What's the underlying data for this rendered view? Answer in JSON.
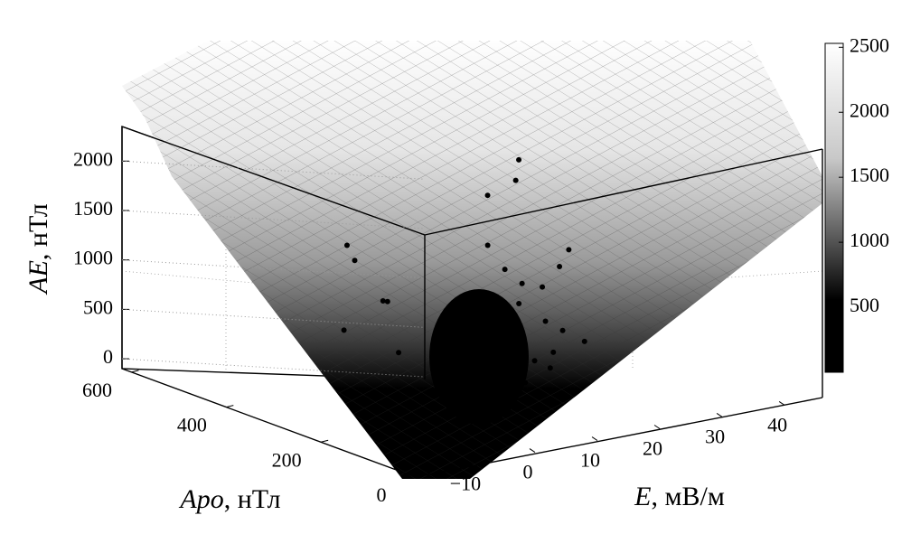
{
  "chart_data": {
    "type": "scatter3d",
    "zlabel": {
      "var": "AE",
      "rest": ", нТл"
    },
    "ylabel": {
      "var": "Apo",
      "rest": ", нТл"
    },
    "xlabel": {
      "var": "E",
      "rest": ", мВ/м"
    },
    "xlim": [
      -21,
      46.5
    ],
    "xticks": [
      {
        "value": -10,
        "label": "−10"
      },
      0,
      10,
      20,
      30,
      40
    ],
    "ylim": [
      0,
      620
    ],
    "yticks": [
      0,
      200,
      400,
      600
    ],
    "zlim": [
      -100,
      2350
    ],
    "zticks": [
      0,
      500,
      1000,
      1500,
      2000
    ],
    "clim": [
      0,
      2530
    ],
    "cticks": [
      500,
      1000,
      1500,
      2000,
      2500
    ],
    "color": "#000000",
    "grid": true,
    "points": {
      "x": [
        0,
        5,
        2,
        8,
        15,
        18,
        20,
        12,
        14,
        16,
        10,
        11,
        13,
        12,
        14,
        15,
        10,
        9,
        7,
        17,
        20,
        22,
        25,
        19,
        21,
        23,
        18,
        16,
        12,
        -2,
        3
      ],
      "y": [
        400,
        450,
        350,
        420,
        300,
        280,
        300,
        260,
        250,
        240,
        300,
        280,
        270,
        240,
        220,
        200,
        200,
        250,
        300,
        260,
        250,
        240,
        260,
        230,
        220,
        200,
        200,
        180,
        180,
        380,
        330
      ],
      "z": [
        1400,
        1100,
        900,
        700,
        1900,
        2050,
        2200,
        1500,
        1250,
        1100,
        900,
        800,
        700,
        600,
        500,
        400,
        300,
        650,
        550,
        850,
        1000,
        1200,
        1300,
        700,
        600,
        500,
        450,
        350,
        250,
        600,
        400
      ]
    }
  }
}
